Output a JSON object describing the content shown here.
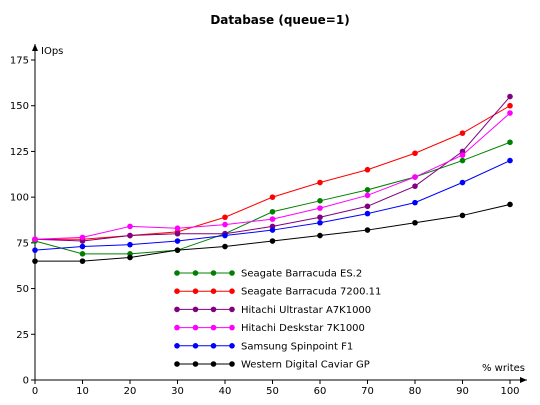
{
  "chart_data": {
    "type": "line",
    "title": "Database (queue=1)",
    "ylabel": "IOps",
    "xlabel": "% writes",
    "x": [
      0,
      10,
      20,
      30,
      40,
      50,
      60,
      70,
      80,
      90,
      100
    ],
    "xlim": [
      0,
      100
    ],
    "ylim": [
      0,
      175
    ],
    "yticks": [
      0,
      25,
      50,
      75,
      100,
      125,
      150,
      175
    ],
    "grid": false,
    "legend_position": "center-bottom",
    "series": [
      {
        "name": "Seagate Barracuda ES.2",
        "color": "#008000",
        "values": [
          76,
          69,
          69,
          71,
          80,
          92,
          98,
          104,
          111,
          120,
          130
        ]
      },
      {
        "name": "Seagate Barracuda 7200.11",
        "color": "#ff0000",
        "values": [
          77,
          77,
          79,
          81,
          89,
          100,
          108,
          115,
          124,
          135,
          150
        ]
      },
      {
        "name": "Hitachi Ultrastar A7K1000",
        "color": "#800080",
        "values": [
          77,
          76,
          79,
          80,
          80,
          84,
          89,
          95,
          106,
          125,
          155
        ]
      },
      {
        "name": "Hitachi Deskstar 7K1000",
        "color": "#ff00ff",
        "values": [
          77,
          78,
          84,
          83,
          85,
          88,
          94,
          101,
          111,
          123,
          146
        ]
      },
      {
        "name": "Samsung Spinpoint F1",
        "color": "#0000ff",
        "values": [
          71,
          73,
          74,
          76,
          79,
          82,
          86,
          91,
          97,
          108,
          120
        ]
      },
      {
        "name": "Western Digital Caviar GP",
        "color": "#000000",
        "values": [
          65,
          65,
          67,
          71,
          73,
          76,
          79,
          82,
          86,
          90,
          96
        ]
      }
    ]
  }
}
